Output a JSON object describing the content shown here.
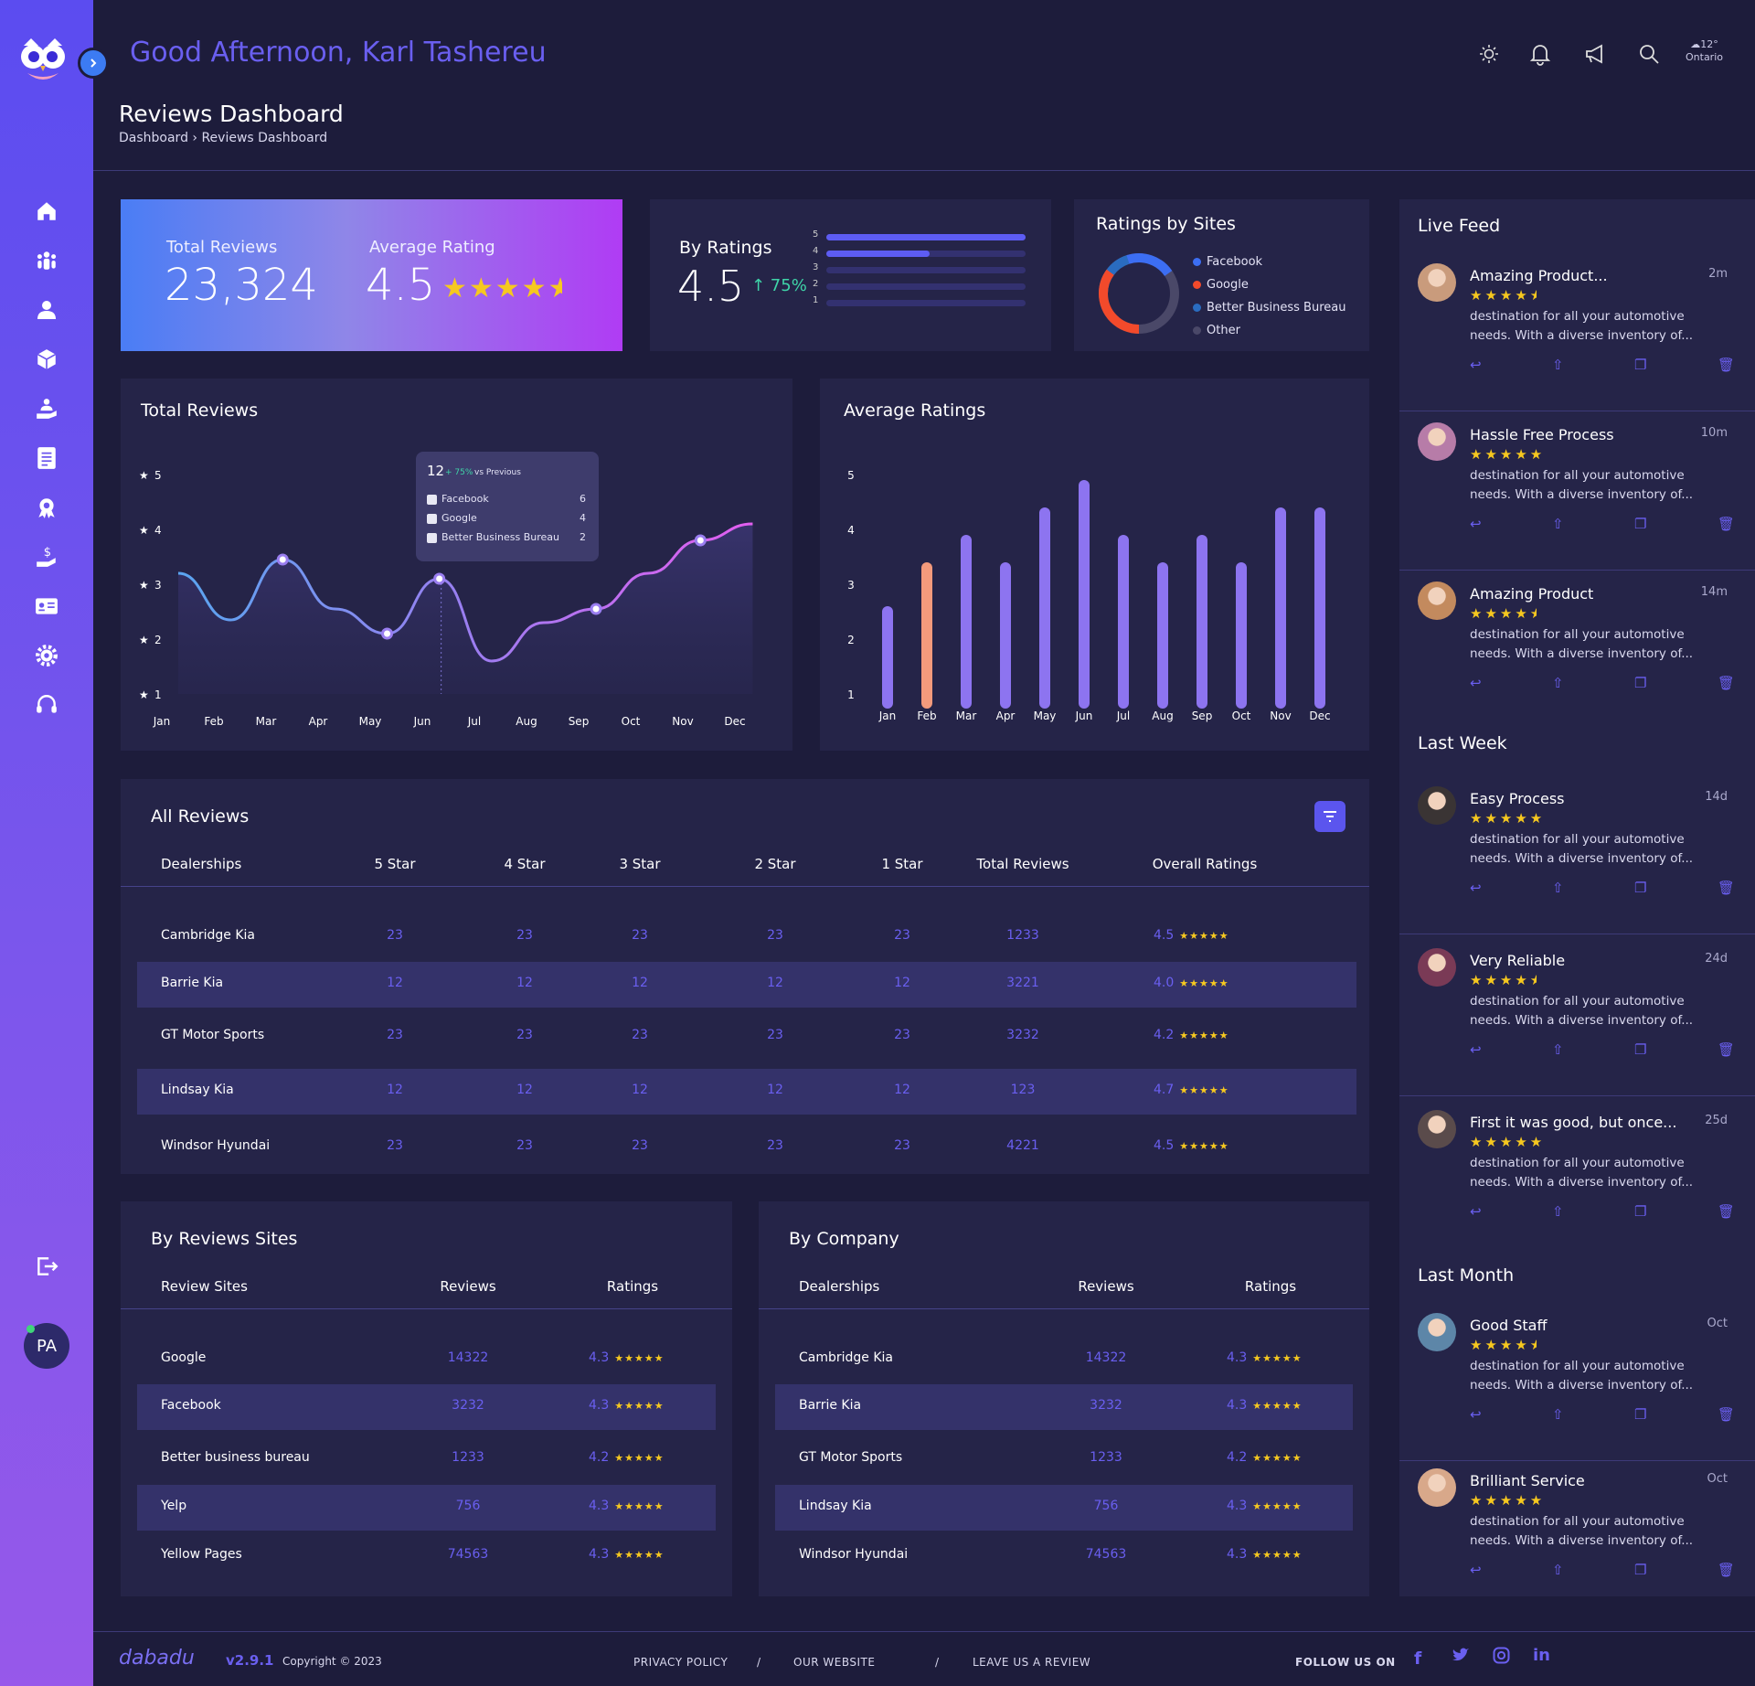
{
  "header": {
    "greeting": "Good Afternoon, Karl Tashereu",
    "weather_temp": "12°",
    "weather_city": "Ontario"
  },
  "page": {
    "title": "Reviews Dashboard",
    "breadcrumb": "Dashboard › Reviews Dashboard"
  },
  "kpi": {
    "total_label": "Total Reviews",
    "total_value": "23,324",
    "avg_label": "Average Rating",
    "avg_value": "4.5",
    "avg_stars": 4.5
  },
  "by_ratings": {
    "title": "By Ratings",
    "value": "4.5",
    "change": "↑ 75%",
    "levels": [
      {
        "label": "5",
        "fill": 1.0
      },
      {
        "label": "4",
        "fill": 0.52
      },
      {
        "label": "3",
        "fill": 0.0
      },
      {
        "label": "2",
        "fill": 0.0
      },
      {
        "label": "1",
        "fill": 0.0
      }
    ]
  },
  "sites": {
    "title": "Ratings by Sites",
    "legend": [
      {
        "label": "Facebook",
        "color": "#3c6ef3"
      },
      {
        "label": "Google",
        "color": "#f24a2b"
      },
      {
        "label": "Better Business Bureau",
        "color": "#2a6cc0"
      },
      {
        "label": "Other",
        "color": "#4a4868"
      }
    ]
  },
  "chart_data": [
    {
      "type": "line",
      "title": "Total Reviews",
      "categories": [
        "Jan",
        "Feb",
        "Mar",
        "Apr",
        "May",
        "Jun",
        "Jul",
        "Aug",
        "Sep",
        "Oct",
        "Nov",
        "Dec"
      ],
      "values": [
        3.2,
        2.35,
        3.45,
        2.55,
        2.1,
        3.1,
        1.6,
        2.3,
        2.55,
        3.2,
        3.8,
        4.1
      ],
      "yticks": [
        "5",
        "4",
        "3",
        "2",
        "1"
      ],
      "ylim": [
        1,
        5
      ],
      "tooltip": {
        "value": "12",
        "change": "+ 75%",
        "vs": "vs Previous",
        "rows": [
          {
            "label": "Facebook",
            "value": "6"
          },
          {
            "label": "Google",
            "value": "4"
          },
          {
            "label": "Better Business Bureau",
            "value": "2"
          }
        ]
      }
    },
    {
      "type": "bar",
      "title": "Average Ratings",
      "categories": [
        "Jan",
        "Feb",
        "Mar",
        "Apr",
        "May",
        "Jun",
        "Jul",
        "Aug",
        "Sep",
        "Oct",
        "Nov",
        "Dec"
      ],
      "values": [
        2.6,
        3.4,
        3.9,
        3.4,
        4.4,
        4.9,
        3.9,
        3.4,
        3.9,
        3.4,
        4.4,
        4.4
      ],
      "highlight": 1,
      "yticks": [
        "5",
        "4",
        "3",
        "2",
        "1"
      ],
      "ylim": [
        1,
        5
      ]
    }
  ],
  "all_reviews": {
    "title": "All Reviews",
    "headers": [
      "Dealerships",
      "5 Star",
      "4 Star",
      "3 Star",
      "2 Star",
      "1 Star",
      "Total Reviews",
      "Overall Ratings"
    ],
    "rows": [
      {
        "name": "Cambridge Kia",
        "s5": "23",
        "s4": "23",
        "s3": "23",
        "s2": "23",
        "s1": "23",
        "total": "1233",
        "rating": "4.5"
      },
      {
        "name": "Barrie Kia",
        "s5": "12",
        "s4": "12",
        "s3": "12",
        "s2": "12",
        "s1": "12",
        "total": "3221",
        "rating": "4.0"
      },
      {
        "name": "GT Motor Sports",
        "s5": "23",
        "s4": "23",
        "s3": "23",
        "s2": "23",
        "s1": "23",
        "total": "3232",
        "rating": "4.2"
      },
      {
        "name": "Lindsay Kia",
        "s5": "12",
        "s4": "12",
        "s3": "12",
        "s2": "12",
        "s1": "12",
        "total": "123",
        "rating": "4.7"
      },
      {
        "name": "Windsor Hyundai",
        "s5": "23",
        "s4": "23",
        "s3": "23",
        "s2": "23",
        "s1": "23",
        "total": "4221",
        "rating": "4.5"
      }
    ]
  },
  "by_sites": {
    "title": "By Reviews Sites",
    "headers": [
      "Review Sites",
      "Reviews",
      "Ratings"
    ],
    "rows": [
      {
        "name": "Google",
        "reviews": "14322",
        "rating": "4.3"
      },
      {
        "name": "Facebook",
        "reviews": "3232",
        "rating": "4.3"
      },
      {
        "name": "Better business bureau",
        "reviews": "1233",
        "rating": "4.2"
      },
      {
        "name": "Yelp",
        "reviews": "756",
        "rating": "4.3"
      },
      {
        "name": "Yellow Pages",
        "reviews": "74563",
        "rating": "4.3"
      }
    ]
  },
  "by_company": {
    "title": "By Company",
    "headers": [
      "Dealerships",
      "Reviews",
      "Ratings"
    ],
    "rows": [
      {
        "name": "Cambridge Kia",
        "reviews": "14322",
        "rating": "4.3"
      },
      {
        "name": "Barrie Kia",
        "reviews": "3232",
        "rating": "4.3"
      },
      {
        "name": "GT Motor Sports",
        "reviews": "1233",
        "rating": "4.2"
      },
      {
        "name": "Lindsay Kia",
        "reviews": "756",
        "rating": "4.3"
      },
      {
        "name": "Windsor Hyundai",
        "reviews": "74563",
        "rating": "4.3"
      }
    ]
  },
  "feed": {
    "title": "Live Feed",
    "last_week": "Last Week",
    "last_month": "Last Month",
    "text": "destination for all your automotive needs. With a diverse inventory of...",
    "items": [
      {
        "title": "Amazing Product...",
        "time": "2m",
        "stars": 4.5,
        "avatar": "#c99b7c"
      },
      {
        "title": "Hassle Free Process",
        "time": "10m",
        "stars": 5,
        "avatar": "#b77ca8"
      },
      {
        "title": "Amazing Product",
        "time": "14m",
        "stars": 4.5,
        "avatar": "#c38a5e"
      },
      {
        "title": "Easy Process",
        "time": "14d",
        "stars": 5,
        "avatar": "#3a3434"
      },
      {
        "title": "Very Reliable",
        "time": "24d",
        "stars": 4.5,
        "avatar": "#7a3a56"
      },
      {
        "title": "First it was good, but once...",
        "time": "25d",
        "stars": 5,
        "avatar": "#5a4b4b"
      },
      {
        "title": "Good Staff",
        "time": "Oct",
        "stars": 4.5,
        "avatar": "#5d86a8"
      },
      {
        "title": "Brilliant Service",
        "time": "Oct",
        "stars": 5,
        "avatar": "#d8a88a"
      }
    ]
  },
  "footer": {
    "brand": "dabadu",
    "version": "v2.9.1",
    "copyright": "Copyright © 2023",
    "privacy": "PRIVACY POLICY",
    "website": "OUR WEBSITE",
    "review": "LEAVE US A REVIEW",
    "sep": "/",
    "follow": "FOLLOW US ON"
  },
  "user": {
    "initials": "PA"
  },
  "colors": {
    "accent": "#6a5ff0",
    "star": "#f6c81f",
    "bg": "#1d1c3b",
    "card": "#252448"
  }
}
